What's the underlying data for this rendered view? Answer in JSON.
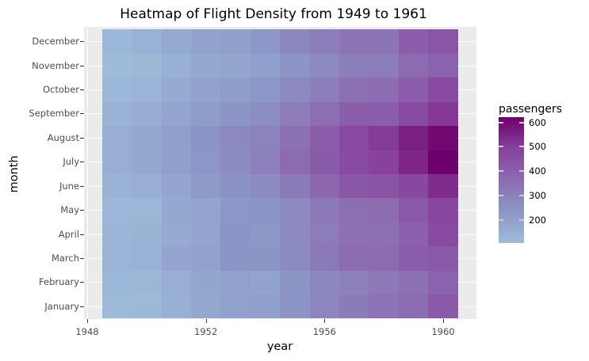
{
  "chart_data": {
    "type": "heatmap",
    "title": "Heatmap of Flight Density from 1949 to 1961",
    "xlabel": "year",
    "ylabel": "month",
    "x": [
      1949,
      1950,
      1951,
      1952,
      1953,
      1954,
      1955,
      1956,
      1957,
      1958,
      1959,
      1960
    ],
    "x_ticks": [
      1948,
      1952,
      1956,
      1960
    ],
    "xlim": [
      1948,
      1961
    ],
    "y": [
      "January",
      "February",
      "March",
      "April",
      "May",
      "June",
      "July",
      "August",
      "September",
      "October",
      "November",
      "December"
    ],
    "values": {
      "January": [
        112,
        115,
        145,
        171,
        196,
        204,
        242,
        284,
        315,
        340,
        360,
        417
      ],
      "February": [
        118,
        126,
        150,
        180,
        196,
        188,
        233,
        277,
        301,
        318,
        342,
        391
      ],
      "March": [
        132,
        141,
        178,
        193,
        236,
        235,
        267,
        317,
        356,
        362,
        406,
        419
      ],
      "April": [
        129,
        135,
        163,
        181,
        235,
        227,
        269,
        313,
        348,
        348,
        396,
        461
      ],
      "May": [
        121,
        125,
        172,
        183,
        229,
        234,
        270,
        318,
        355,
        363,
        420,
        472
      ],
      "June": [
        135,
        149,
        178,
        218,
        243,
        264,
        315,
        374,
        422,
        435,
        472,
        535
      ],
      "July": [
        148,
        170,
        199,
        230,
        264,
        302,
        364,
        413,
        465,
        491,
        548,
        622
      ],
      "August": [
        148,
        170,
        199,
        242,
        272,
        293,
        347,
        405,
        467,
        505,
        559,
        606
      ],
      "September": [
        136,
        158,
        184,
        209,
        237,
        259,
        312,
        355,
        404,
        404,
        463,
        508
      ],
      "October": [
        119,
        133,
        162,
        191,
        211,
        229,
        274,
        306,
        347,
        359,
        407,
        461
      ],
      "November": [
        104,
        114,
        146,
        172,
        180,
        203,
        237,
        271,
        305,
        310,
        362,
        390
      ],
      "December": [
        118,
        140,
        166,
        194,
        201,
        229,
        278,
        306,
        336,
        337,
        405,
        432
      ]
    },
    "colorbar": {
      "title": "passengers",
      "ticks": [
        200,
        300,
        400,
        500,
        600
      ],
      "range": [
        104,
        622
      ],
      "colors": [
        "#9ebcda",
        "#8c96c6",
        "#8c6bb1",
        "#88419d",
        "#6e016b"
      ]
    },
    "legend_position": "right",
    "grid": true
  },
  "labels": {
    "title": "Heatmap of Flight Density from 1949 to 1961",
    "xlabel": "year",
    "ylabel": "month",
    "legend_title": "passengers",
    "x_ticks": [
      "1948",
      "1952",
      "1956",
      "1960"
    ],
    "y_ticks": [
      "January",
      "February",
      "March",
      "April",
      "May",
      "June",
      "July",
      "August",
      "September",
      "October",
      "November",
      "December"
    ],
    "legend_ticks": [
      "200",
      "300",
      "400",
      "500",
      "600"
    ]
  }
}
